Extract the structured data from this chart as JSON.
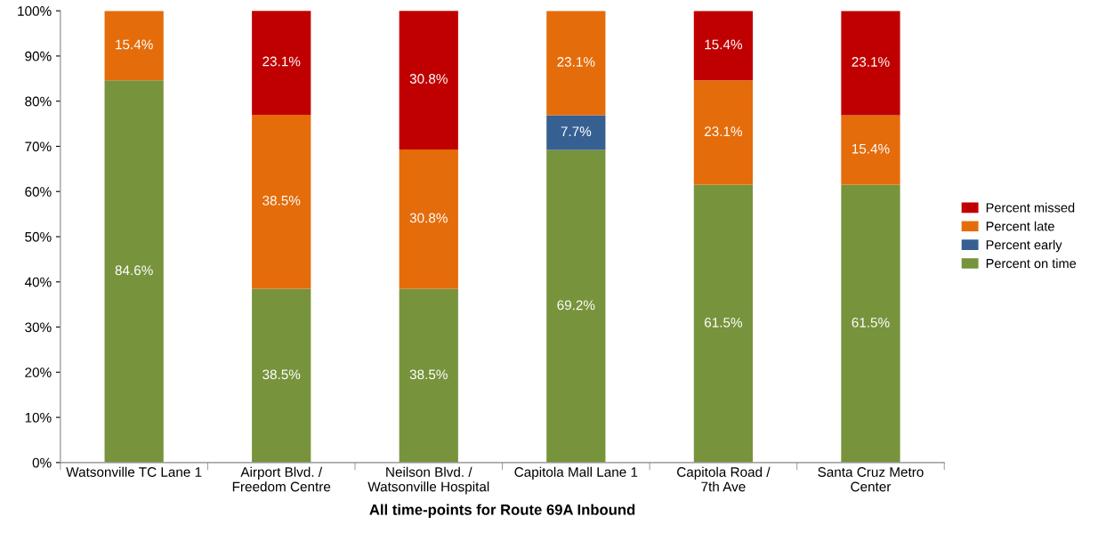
{
  "chart_data": {
    "type": "bar",
    "stacked": true,
    "xlabel": "All time-points for Route 69A Inbound",
    "categories": [
      "Watsonville TC Lane 1",
      "Airport Blvd. /\nFreedom Centre",
      "Neilson Blvd. /\nWatsonville Hospital",
      "Capitola Mall Lane 1",
      "Capitola Road /\n7th Ave",
      "Santa Cruz Metro\nCenter"
    ],
    "series": [
      {
        "name": "Percent on time",
        "color": "#77933c",
        "values": [
          84.6,
          38.5,
          38.5,
          69.2,
          61.5,
          61.5
        ],
        "value_labels": [
          "84.6%",
          "38.5%",
          "38.5%",
          "69.2%",
          "61.5%",
          "61.5%"
        ]
      },
      {
        "name": "Percent early",
        "color": "#376092",
        "values": [
          null,
          null,
          null,
          7.7,
          null,
          null
        ],
        "value_labels": [
          null,
          null,
          null,
          "7.7%",
          null,
          null
        ]
      },
      {
        "name": "Percent late",
        "color": "#e46c0a",
        "values": [
          15.4,
          38.5,
          30.8,
          23.1,
          23.1,
          15.4
        ],
        "value_labels": [
          "15.4%",
          "38.5%",
          "30.8%",
          "23.1%",
          "23.1%",
          "15.4%"
        ]
      },
      {
        "name": "Percent missed",
        "color": "#c00000",
        "values": [
          null,
          23.1,
          30.8,
          null,
          15.4,
          23.1
        ],
        "value_labels": [
          null,
          "23.1%",
          "30.8%",
          null,
          "15.4%",
          "23.1%"
        ]
      }
    ],
    "ylim": [
      0,
      100
    ],
    "yticks": [
      {
        "value": 0,
        "label": "0%"
      },
      {
        "value": 10,
        "label": "10%"
      },
      {
        "value": 20,
        "label": "20%"
      },
      {
        "value": 30,
        "label": "30%"
      },
      {
        "value": 40,
        "label": "40%"
      },
      {
        "value": 50,
        "label": "50%"
      },
      {
        "value": 60,
        "label": "60%"
      },
      {
        "value": 70,
        "label": "70%"
      },
      {
        "value": 80,
        "label": "80%"
      },
      {
        "value": 90,
        "label": "90%"
      },
      {
        "value": 100,
        "label": "100%"
      }
    ],
    "grid": false,
    "legend": "right"
  }
}
